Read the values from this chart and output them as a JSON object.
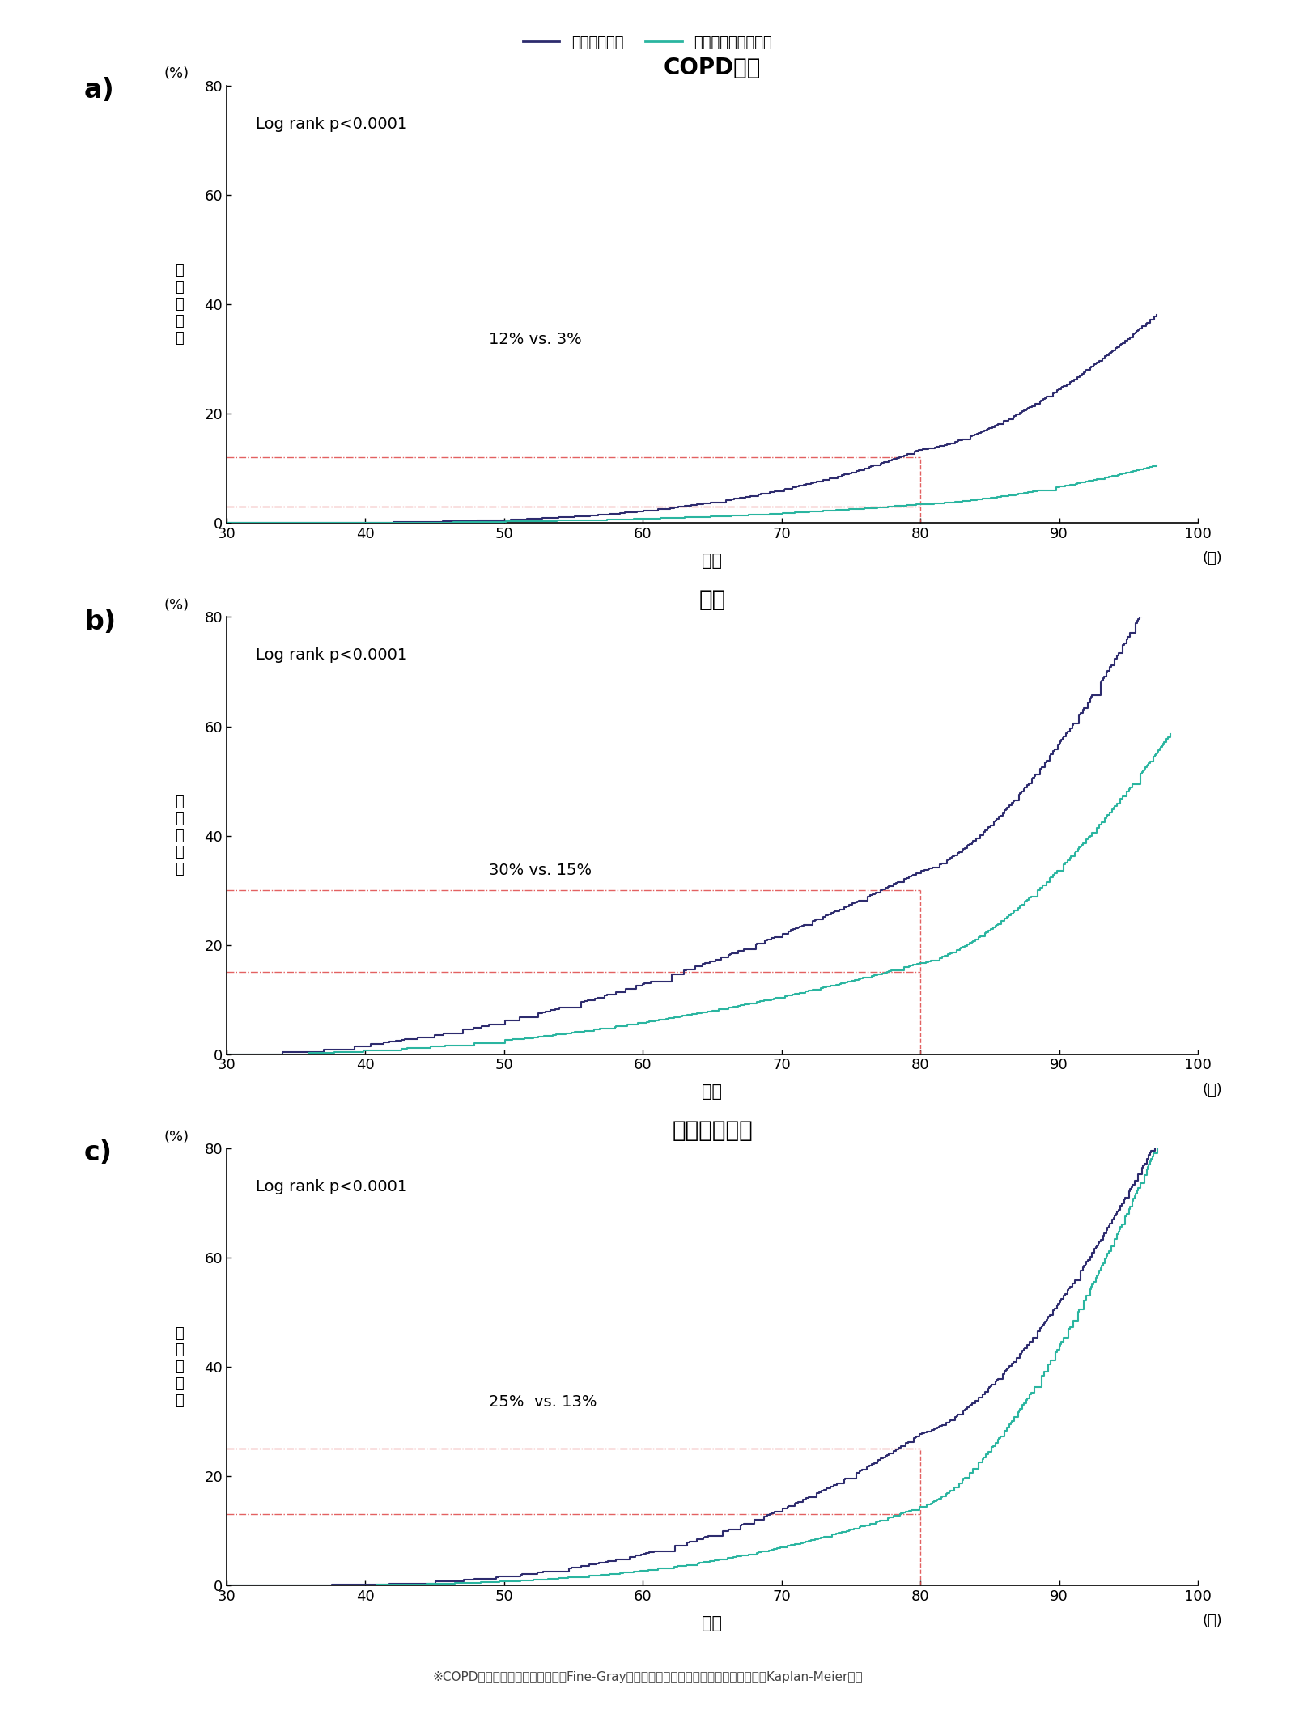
{
  "title_a": "COPD増悪",
  "title_b": "肺炎",
  "title_c": "全死因死亡率",
  "label_a": "a)",
  "label_b": "b)",
  "label_c": "c)",
  "legend_chronic": "慢性咳嗽患者",
  "legend_no_chronic": "慢性咳嗽がない患者",
  "ylabel_chars": [
    "累",
    "積",
    "発",
    "生",
    "率"
  ],
  "xlabel": "年齢",
  "yunit": "(%)",
  "xunit": "(歳)",
  "pvalue_text": "Log rank p<0.0001",
  "footnote": "※COPD増悪と肺炎の累積発生率はFine-Gray競合リスクモデル。全死亡の累積発生率はKaplan-Meier分析",
  "color_chronic": "#2d2b6e",
  "color_no_chronic": "#2ab5a0",
  "color_ref_line": "#e05050",
  "xlim": [
    30,
    100
  ],
  "xticks": [
    30,
    40,
    50,
    60,
    70,
    80,
    90,
    100
  ],
  "ylim": [
    0,
    80
  ],
  "yticks": [
    0,
    20,
    40,
    60,
    80
  ],
  "annotation_a": "12% vs. 3%",
  "annotation_b": "30% vs. 15%",
  "annotation_c": "25%  vs. 13%",
  "ref_line_x": 80,
  "ref_line_a_y1": 12,
  "ref_line_a_y2": 3,
  "ref_line_b_y1": 30,
  "ref_line_b_y2": 15,
  "ref_line_c_y1": 25,
  "ref_line_c_y2": 13
}
